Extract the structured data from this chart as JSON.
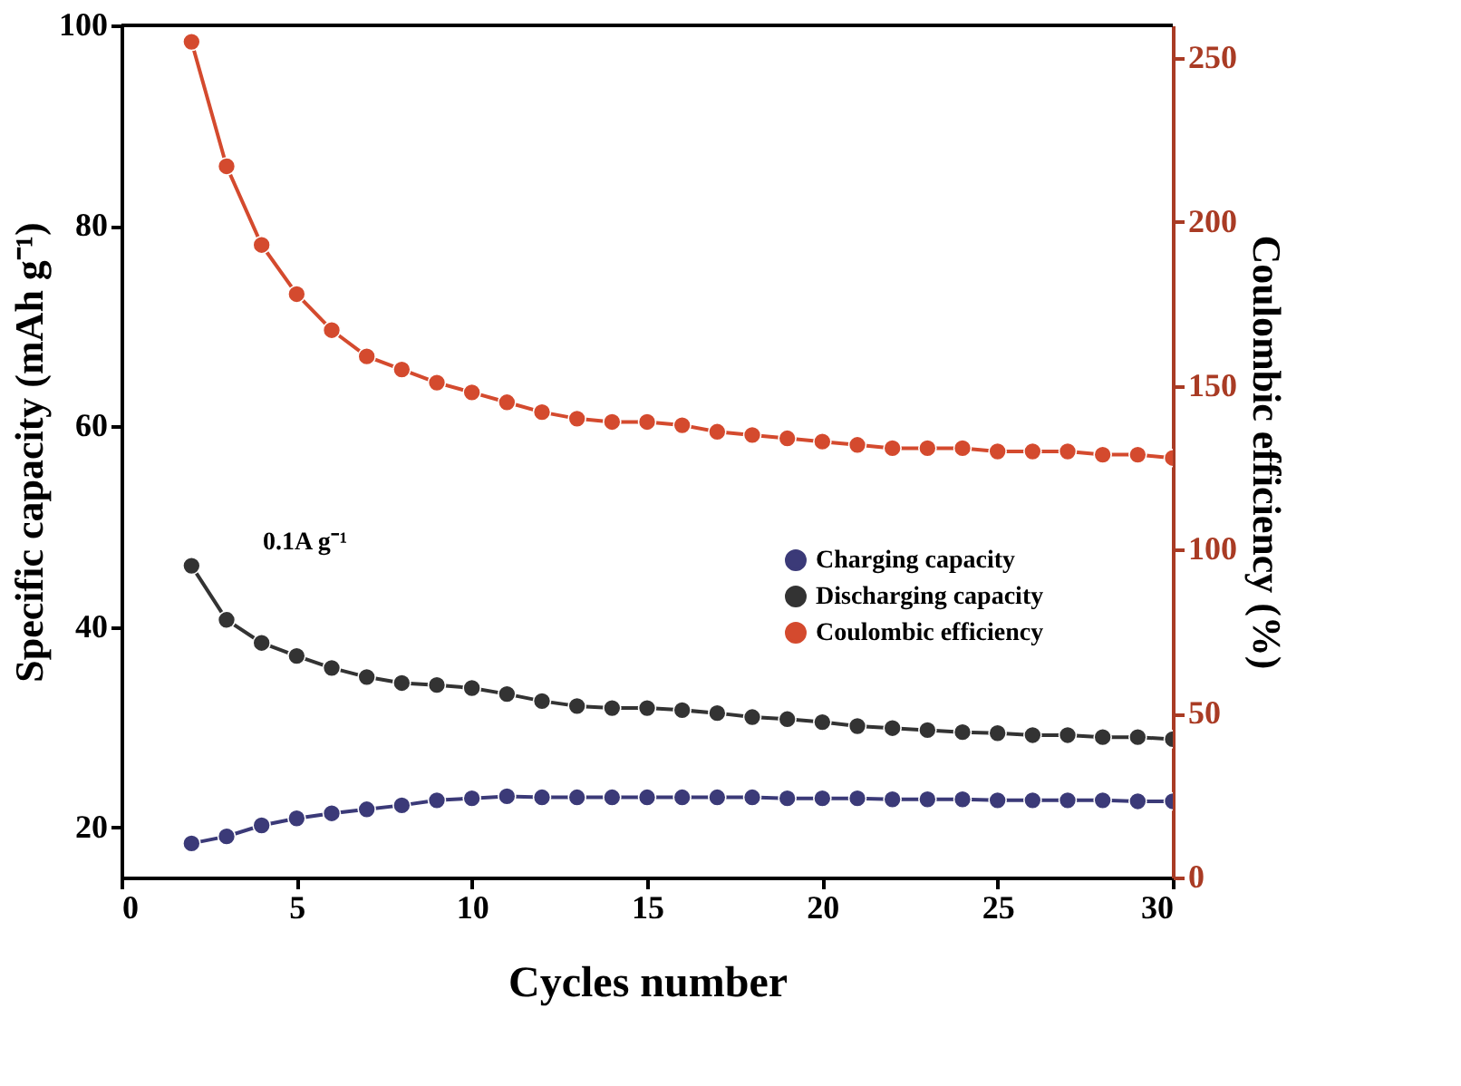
{
  "chart_data": {
    "type": "line",
    "xlabel": "Cycles number",
    "ylabel": "Specific capacity (mAh g⁻¹)",
    "y2label": "Coulombic efficiency (%)",
    "x": [
      2,
      3,
      4,
      5,
      6,
      7,
      8,
      9,
      10,
      11,
      12,
      13,
      14,
      15,
      16,
      17,
      18,
      19,
      20,
      21,
      22,
      23,
      24,
      25,
      26,
      27,
      28,
      29,
      30
    ],
    "series": [
      {
        "name": "Charging capacity",
        "color": "#3b3a78",
        "values": [
          18.4,
          19.1,
          20.2,
          20.9,
          21.4,
          21.8,
          22.2,
          22.7,
          22.9,
          23.1,
          23.0,
          23.0,
          23.0,
          23.0,
          23.0,
          23.0,
          23.0,
          22.9,
          22.9,
          22.9,
          22.8,
          22.8,
          22.8,
          22.7,
          22.7,
          22.7,
          22.7,
          22.6,
          22.6
        ]
      },
      {
        "name": "Discharging capacity",
        "color": "#333333",
        "values": [
          46.1,
          40.7,
          38.4,
          37.1,
          35.9,
          35.0,
          34.4,
          34.2,
          33.9,
          33.3,
          32.6,
          32.1,
          31.9,
          31.9,
          31.7,
          31.4,
          31.0,
          30.8,
          30.5,
          30.1,
          29.9,
          29.7,
          29.5,
          29.4,
          29.2,
          29.2,
          29.0,
          29.0,
          28.8
        ]
      },
      {
        "name": "Coulombic efficiency",
        "color": "#d44a2e",
        "axis": "y2",
        "values": [
          255,
          217,
          193,
          178,
          167,
          159,
          155,
          151,
          148,
          145,
          142,
          140,
          139,
          139,
          138,
          136,
          135,
          134,
          133,
          132,
          131,
          131,
          131,
          130,
          130,
          130,
          129,
          129,
          128
        ]
      }
    ],
    "xlim": [
      0,
      30
    ],
    "xticks": [
      0,
      5,
      10,
      15,
      20,
      25,
      30
    ],
    "ylim": [
      15,
      100
    ],
    "yticks": [
      20,
      40,
      60,
      80,
      100
    ],
    "y2lim": [
      0,
      260
    ],
    "y2ticks": [
      0,
      50,
      100,
      150,
      200,
      250
    ],
    "annotations": [
      "0.1A g⁻¹"
    ],
    "marker": "circle",
    "line_style": "solid",
    "grid": false,
    "legend": "right"
  }
}
